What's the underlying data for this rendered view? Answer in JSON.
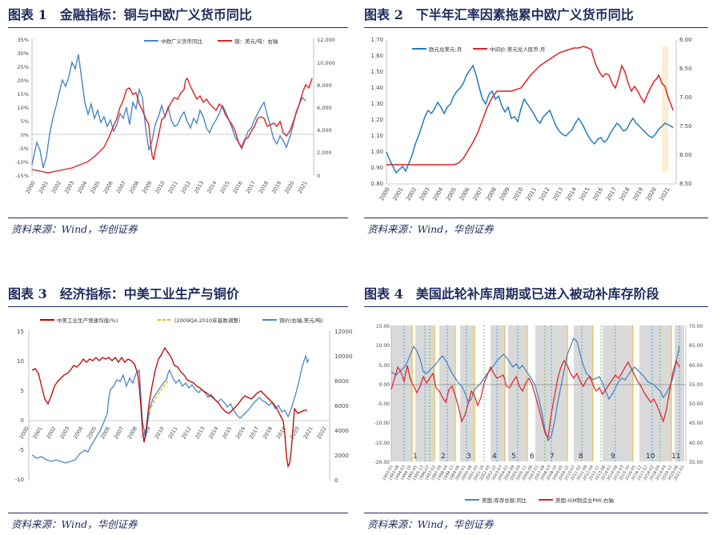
{
  "source_text": "资料来源：Wind，华创证券",
  "figures": [
    {
      "title": "图表 1　金融指标：铜与中欧广义货币同比",
      "legend": [
        {
          "label": "中欧广义货币同比",
          "color": "#4a86c5"
        },
        {
          "label": "铜：美元/吨：右轴",
          "color": "#e02127"
        }
      ],
      "left_ticks": [
        "35%",
        "30%",
        "25%",
        "20%",
        "15%",
        "10%",
        "5%",
        "0%",
        "-5%",
        "-10%",
        "-15%"
      ],
      "right_ticks": [
        "12,000",
        "10,000",
        "8,000",
        "6,000",
        "4,000",
        "2,000",
        "0"
      ],
      "x_ticks": [
        "2000",
        "2001",
        "2002",
        "2003",
        "2004",
        "2005",
        "2006",
        "2007",
        "2008",
        "2009",
        "2010",
        "2011",
        "2012",
        "2013",
        "2014",
        "2015",
        "2016",
        "2017",
        "2018",
        "2019",
        "2020",
        "2021"
      ]
    },
    {
      "title": "图表 2　下半年汇率因素拖累中欧广义货币同比",
      "legend": [
        {
          "label": "欧元兑美元:月",
          "color": "#1f7bc0"
        },
        {
          "label": "中间价:美元兑人民币:月",
          "color": "#e02127"
        }
      ],
      "left_ticks": [
        "1.70",
        "1.60",
        "1.50",
        "1.40",
        "1.30",
        "1.20",
        "1.10",
        "1.00",
        "0.90",
        "0.80"
      ],
      "right_ticks": [
        "6.00",
        "6.50",
        "7.00",
        "7.50",
        "8.00",
        "8.50"
      ],
      "x_ticks": [
        "2000",
        "2001",
        "2002",
        "2003",
        "2004",
        "2005",
        "2006",
        "2007",
        "2008",
        "2009",
        "2010",
        "2011",
        "2012",
        "2013",
        "2014",
        "2015",
        "2016",
        "2017",
        "2018",
        "2019",
        "2020",
        "2021"
      ]
    },
    {
      "title": "图表 3　经济指标：中美工业生产与铜价",
      "legend": [
        {
          "label": "中美工业生产增速均值(%)",
          "color": "#c00000"
        },
        {
          "label": "(2009Q4-2010年基数调整)",
          "color": "#f2b619"
        },
        {
          "label": "铜价(右轴,美元/吨)",
          "color": "#4a86c5"
        }
      ],
      "left_ticks": [
        "15",
        "10",
        "5",
        "0",
        "-5",
        "-10"
      ],
      "right_ticks": [
        "12000",
        "10000",
        "8000",
        "6000",
        "4000",
        "2000",
        "0"
      ],
      "x_ticks": [
        "2000",
        "2001",
        "2002",
        "2003",
        "2004",
        "2005",
        "2006",
        "2007",
        "2008",
        "2009",
        "2010",
        "2011",
        "2012",
        "2013",
        "2014",
        "2015",
        "2016",
        "2017",
        "2018",
        "2019",
        "2020",
        "2021",
        "2022"
      ]
    },
    {
      "title": "图表 4　美国此轮补库周期或已进入被动补库存阶段",
      "legend": [
        {
          "label": "美国:库存总额:同比",
          "color": "#4a86c5"
        },
        {
          "label": "美国:ISM制造业PMI,右轴",
          "color": "#e02127"
        }
      ],
      "left_ticks": [
        "15.00",
        "10.00",
        "5.00",
        "0.00",
        "-5.00",
        "-10.00",
        "-15.00",
        "-20.00"
      ],
      "right_ticks": [
        "70.00",
        "65.00",
        "60.00",
        "55.00",
        "50.00",
        "45.00",
        "40.00",
        "35.00"
      ],
      "cycle_labels": [
        "1",
        "2",
        "3",
        "4",
        "5",
        "6",
        "7",
        "8",
        "9",
        "10",
        "11"
      ],
      "x_ticks": [
        "1993-01",
        "1993-08",
        "1994-03",
        "1994-10",
        "1995-05",
        "1995-12",
        "1996-07",
        "1997-02",
        "1997-09",
        "1998-04",
        "1998-11",
        "1999-06",
        "2000-01",
        "2000-08",
        "2001-03",
        "2001-10",
        "2002-05",
        "2002-12",
        "2003-07",
        "2004-02",
        "2004-09",
        "2005-04",
        "2005-11",
        "2006-06",
        "2007-01",
        "2007-08",
        "2008-03",
        "2008-10",
        "2009-05",
        "2009-12",
        "2010-07",
        "2011-02",
        "2011-09",
        "2012-04",
        "2012-11",
        "2013-06",
        "2014-01",
        "2014-08",
        "2015-03",
        "2015-10",
        "2016-05",
        "2016-12",
        "2017-07",
        "2018-02",
        "2018-09",
        "2019-04",
        "2019-11",
        "2020-06",
        "2021-01"
      ]
    }
  ]
}
